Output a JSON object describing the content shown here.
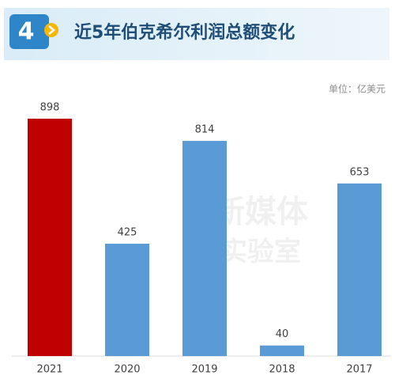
{
  "chart_data": {
    "type": "bar",
    "badge": "4",
    "title": "近5年伯克希尔利润总额变化",
    "unit": "单位：亿美元",
    "watermark": [
      "新媒体",
      "实验室"
    ],
    "categories": [
      "2021",
      "2020",
      "2019",
      "2018",
      "2017"
    ],
    "values": [
      898,
      425,
      814,
      40,
      653
    ],
    "colors": [
      "#c00000",
      "#5b9bd5",
      "#5b9bd5",
      "#5b9bd5",
      "#5b9bd5"
    ]
  }
}
